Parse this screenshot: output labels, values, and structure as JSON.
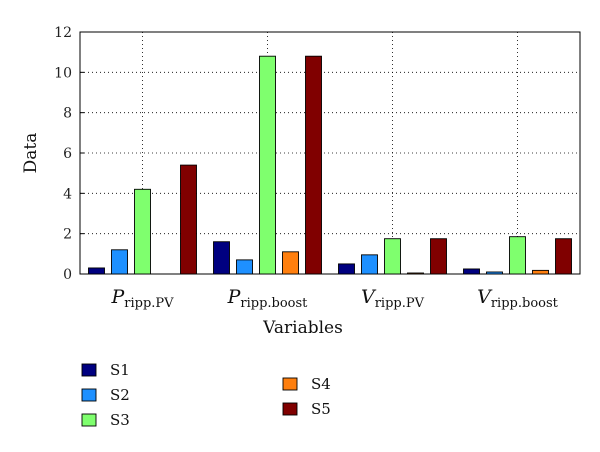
{
  "chart_data": {
    "type": "bar",
    "title": "",
    "xlabel": "Variables",
    "ylabel": "Data",
    "ylim": [
      0,
      12
    ],
    "yticks": [
      0,
      2,
      4,
      6,
      8,
      10,
      12
    ],
    "grid": "dotted vertical and horizontal",
    "legend_position": "below",
    "categories": [
      {
        "main": "P",
        "sub": "ripp.PV"
      },
      {
        "main": "P",
        "sub": "ripp.boost"
      },
      {
        "main": "V",
        "sub": "ripp.PV"
      },
      {
        "main": "V",
        "sub": "ripp.boost"
      }
    ],
    "series": [
      {
        "name": "S1",
        "color": "#000080",
        "values": [
          0.3,
          1.6,
          0.5,
          0.25
        ]
      },
      {
        "name": "S2",
        "color": "#1e90ff",
        "values": [
          1.2,
          0.7,
          0.95,
          0.1
        ]
      },
      {
        "name": "S3",
        "color": "#7fff6e",
        "values": [
          4.2,
          10.8,
          1.75,
          1.85
        ]
      },
      {
        "name": "S4",
        "color": "#ff7f0e",
        "values": [
          0.0,
          1.1,
          0.05,
          0.18
        ]
      },
      {
        "name": "S5",
        "color": "#800000",
        "values": [
          5.4,
          10.8,
          1.75,
          1.75
        ]
      }
    ]
  }
}
